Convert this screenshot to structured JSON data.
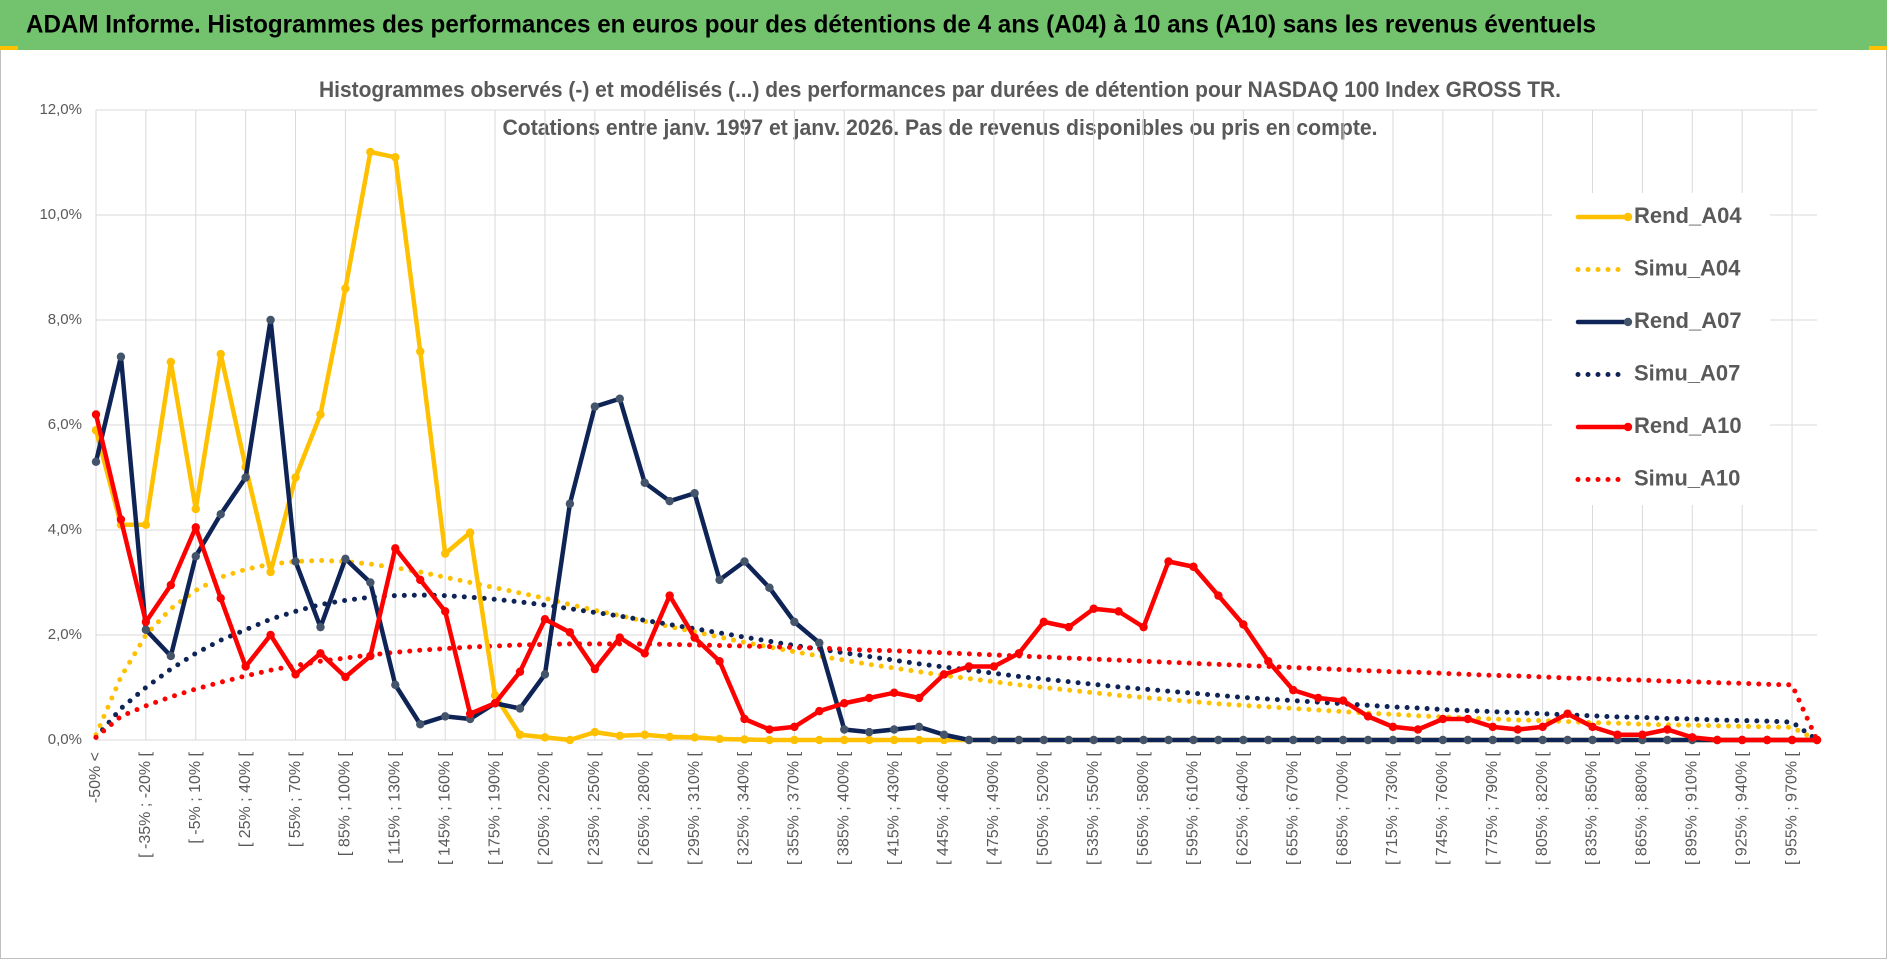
{
  "header": {
    "title": "ADAM Informe. Histogrammes des performances en euros pour des détentions de 4 ans (A04) à 10 ans (A10) sans les revenus éventuels"
  },
  "chart_data": {
    "type": "line",
    "title": "Histogrammes observés (-) et modélisés (...) des performances par durées de détention pour NASDAQ 100 Index GROSS TR.",
    "subtitle": "Cotations entre janv. 1997 et janv. 2026. Pas de revenus disponibles ou pris en compte.",
    "categories": [
      "-50% <",
      null,
      "[ -35% ; -20% [",
      null,
      "[ -5% ; 10% [",
      null,
      "[ 25% ; 40% [",
      null,
      "[ 55% ; 70% [",
      null,
      "[ 85% ; 100% [",
      null,
      "[ 115% ; 130% [",
      null,
      "[ 145% ; 160% [",
      null,
      "[ 175% ; 190% [",
      null,
      "[ 205% ; 220% [",
      null,
      "[ 235% ; 250% [",
      null,
      "[ 265% ; 280% [",
      null,
      "[ 295% ; 310% [",
      null,
      "[ 325% ; 340% [",
      null,
      "[ 355% ; 370% [",
      null,
      "[ 385% ; 400% [",
      null,
      "[ 415% ; 430% [",
      null,
      "[ 445% ; 460% [",
      null,
      "[ 475% ; 490% [",
      null,
      "[ 505% ; 520% [",
      null,
      "[ 535% ; 550% [",
      null,
      "[ 565% ; 580% [",
      null,
      "[ 595% ; 610% [",
      null,
      "[ 625% ; 640% [",
      null,
      "[ 655% ; 670% [",
      null,
      "[ 685% ; 700% [",
      null,
      "[ 715% ; 730% [",
      null,
      "[ 745% ; 760% [",
      null,
      "[ 775% ; 790% [",
      null,
      "[ 805% ; 820% [",
      null,
      "[ 835% ; 850% [",
      null,
      "[ 865% ; 880% [",
      null,
      "[ 895% ; 910% [",
      null,
      "[ 925% ; 940% [",
      null,
      "[ 955% ; 970% [",
      null
    ],
    "ylim": [
      0,
      12
    ],
    "yticks": [
      {
        "value": 0,
        "label": "0,0%"
      },
      {
        "value": 2,
        "label": "2,0%"
      },
      {
        "value": 4,
        "label": "4,0%"
      },
      {
        "value": 6,
        "label": "6,0%"
      },
      {
        "value": 8,
        "label": "8,0%"
      },
      {
        "value": 10,
        "label": "10,0%"
      },
      {
        "value": 12,
        "label": "12,0%"
      }
    ],
    "grid": true,
    "legend": "upper right",
    "series": [
      {
        "name": "Rend_A04",
        "color": "#ffc000",
        "line_style": "solid",
        "values": [
          5.9,
          4.1,
          4.1,
          7.2,
          4.4,
          7.35,
          5.2,
          3.2,
          5.0,
          6.2,
          8.6,
          11.2,
          11.1,
          7.4,
          3.55,
          3.95,
          0.85,
          0.1,
          0.05,
          0.0,
          0.15,
          0.08,
          0.1,
          0.06,
          0.05,
          0.02,
          0.01,
          0,
          0,
          0,
          0,
          0,
          0,
          0,
          0,
          0,
          0,
          0,
          0,
          0,
          0,
          0,
          0,
          0,
          0,
          0,
          0,
          0,
          0,
          0,
          0,
          0,
          0,
          0,
          0,
          0,
          0,
          0,
          0,
          0,
          0,
          0,
          0,
          0,
          0,
          0,
          0,
          0,
          0,
          0
        ]
      },
      {
        "name": "Simu_A04",
        "color": "#ffc000",
        "line_style": "dotted",
        "values": [
          0.1,
          1.2,
          2.0,
          2.5,
          2.85,
          3.1,
          3.25,
          3.35,
          3.4,
          3.42,
          3.4,
          3.35,
          3.28,
          3.2,
          3.1,
          3.0,
          2.9,
          2.8,
          2.7,
          2.58,
          2.47,
          2.37,
          2.26,
          2.16,
          2.06,
          1.96,
          1.86,
          1.77,
          1.68,
          1.6,
          1.52,
          1.44,
          1.37,
          1.3,
          1.23,
          1.17,
          1.11,
          1.05,
          1.0,
          0.95,
          0.9,
          0.85,
          0.81,
          0.77,
          0.73,
          0.69,
          0.66,
          0.63,
          0.6,
          0.57,
          0.54,
          0.51,
          0.49,
          0.46,
          0.44,
          0.42,
          0.4,
          0.38,
          0.37,
          0.35,
          0.33,
          0.32,
          0.3,
          0.29,
          0.28,
          0.27,
          0.26,
          0.25,
          0.24,
          0.0
        ]
      },
      {
        "name": "Rend_A07",
        "color": "#0f2456",
        "line_style": "solid",
        "values": [
          5.3,
          7.3,
          2.1,
          1.6,
          3.5,
          4.3,
          5.0,
          8.0,
          3.4,
          2.15,
          3.45,
          3.0,
          1.05,
          0.3,
          0.45,
          0.4,
          0.7,
          0.6,
          1.25,
          4.5,
          6.35,
          6.5,
          4.9,
          4.55,
          4.7,
          3.05,
          3.4,
          2.9,
          2.25,
          1.85,
          0.2,
          0.15,
          0.2,
          0.25,
          0.1,
          0,
          0,
          0,
          0,
          0,
          0,
          0,
          0,
          0,
          0,
          0,
          0,
          0,
          0,
          0,
          0,
          0,
          0,
          0,
          0,
          0,
          0,
          0,
          0,
          0,
          0,
          0,
          0,
          0,
          0,
          0,
          0,
          0,
          0,
          0
        ]
      },
      {
        "name": "Simu_A07",
        "color": "#0f2456",
        "line_style": "dotted",
        "values": [
          0.05,
          0.6,
          1.0,
          1.35,
          1.65,
          1.9,
          2.1,
          2.3,
          2.45,
          2.58,
          2.66,
          2.72,
          2.75,
          2.76,
          2.75,
          2.72,
          2.68,
          2.63,
          2.57,
          2.5,
          2.43,
          2.36,
          2.28,
          2.2,
          2.12,
          2.04,
          1.96,
          1.88,
          1.8,
          1.73,
          1.66,
          1.59,
          1.52,
          1.45,
          1.39,
          1.33,
          1.27,
          1.21,
          1.16,
          1.11,
          1.06,
          1.01,
          0.97,
          0.93,
          0.89,
          0.85,
          0.81,
          0.78,
          0.75,
          0.72,
          0.69,
          0.66,
          0.63,
          0.61,
          0.58,
          0.56,
          0.54,
          0.52,
          0.5,
          0.48,
          0.46,
          0.44,
          0.43,
          0.41,
          0.4,
          0.38,
          0.37,
          0.36,
          0.34,
          0.0
        ]
      },
      {
        "name": "Rend_A10",
        "color": "#ff0000",
        "line_style": "solid",
        "values": [
          6.2,
          4.2,
          2.25,
          2.95,
          4.05,
          2.7,
          1.4,
          2.0,
          1.25,
          1.65,
          1.2,
          1.6,
          3.65,
          3.05,
          2.45,
          0.5,
          0.7,
          1.3,
          2.3,
          2.05,
          1.35,
          1.95,
          1.65,
          2.75,
          1.95,
          1.5,
          0.4,
          0.2,
          0.25,
          0.55,
          0.7,
          0.8,
          0.9,
          0.8,
          1.25,
          1.4,
          1.4,
          1.65,
          2.25,
          2.15,
          2.5,
          2.45,
          2.15,
          3.4,
          3.3,
          2.75,
          2.2,
          1.5,
          0.95,
          0.8,
          0.75,
          0.45,
          0.25,
          0.2,
          0.4,
          0.4,
          0.25,
          0.2,
          0.25,
          0.5,
          0.25,
          0.1,
          0.1,
          0.2,
          0.05,
          0.0,
          0.0,
          0.0,
          0.0,
          0.0
        ]
      },
      {
        "name": "Simu_A10",
        "color": "#ff0000",
        "line_style": "dotted",
        "values": [
          0.05,
          0.45,
          0.65,
          0.82,
          0.97,
          1.1,
          1.22,
          1.33,
          1.42,
          1.5,
          1.56,
          1.62,
          1.67,
          1.71,
          1.74,
          1.77,
          1.79,
          1.81,
          1.82,
          1.83,
          1.83,
          1.83,
          1.83,
          1.82,
          1.81,
          1.8,
          1.79,
          1.78,
          1.76,
          1.75,
          1.73,
          1.71,
          1.7,
          1.68,
          1.66,
          1.64,
          1.62,
          1.6,
          1.58,
          1.56,
          1.54,
          1.52,
          1.5,
          1.48,
          1.46,
          1.44,
          1.42,
          1.4,
          1.38,
          1.36,
          1.34,
          1.32,
          1.3,
          1.29,
          1.27,
          1.25,
          1.23,
          1.22,
          1.2,
          1.18,
          1.17,
          1.15,
          1.14,
          1.12,
          1.11,
          1.09,
          1.08,
          1.06,
          1.05,
          0.0
        ]
      }
    ]
  }
}
